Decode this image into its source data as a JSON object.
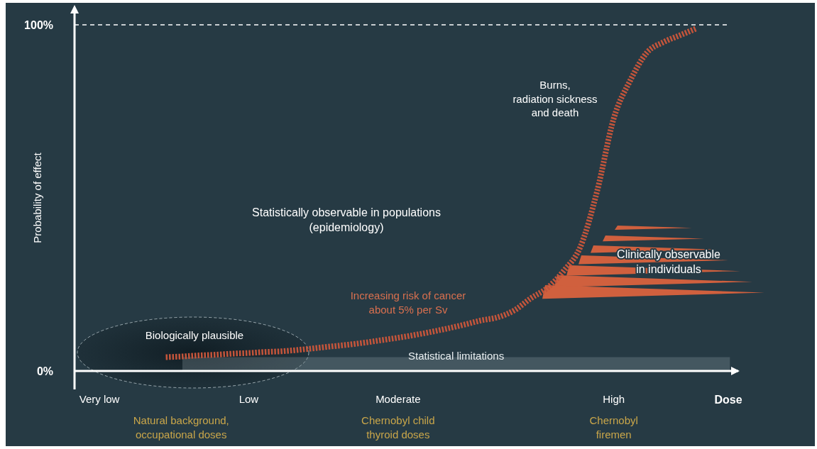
{
  "chart_data": {
    "type": "line",
    "xlabel": "Dose",
    "ylabel": "Probability of effect",
    "categories": [
      null,
      "Very low",
      null,
      null,
      null,
      null,
      null,
      null,
      null,
      null,
      "Low",
      null,
      null,
      null,
      null,
      null,
      null,
      null,
      null,
      "Moderate",
      null,
      null,
      null,
      null,
      null,
      null,
      null,
      null,
      null,
      null,
      null,
      null,
      "High",
      null,
      null,
      null,
      null,
      null,
      null,
      null
    ],
    "ylim": [
      0,
      100
    ],
    "yticks": [
      {
        "value": 0,
        "label": "0%"
      },
      {
        "value": 100,
        "label": "100%"
      }
    ],
    "grid": false,
    "line_style": "dashed",
    "series": [
      {
        "color": "#c4553b",
        "values": [
          null,
          null,
          null,
          null,
          null,
          4,
          4.2,
          4.5,
          4.7,
          5,
          5.2,
          5.5,
          5.7,
          6.1,
          6.6,
          7.1,
          7.6,
          8.2,
          8.9,
          9.6,
          10.4,
          11.3,
          12.3,
          13.4,
          14.6,
          15.5,
          17.5,
          21,
          24,
          29,
          36,
          52,
          73,
          84,
          92,
          95,
          97,
          99,
          null,
          null
        ]
      }
    ],
    "ref_lines": [
      {
        "axis": "y",
        "value": 100,
        "color": "#ffffff",
        "line_style": "dashed"
      }
    ],
    "bands": [
      {
        "axis": "y",
        "from": 0,
        "to": 4,
        "label": "Statistical limitations",
        "color": "#8a9aa2"
      }
    ],
    "annotations": [
      "Biologically plausible",
      "Increasing risk of cancer\nabout 5% per Sv",
      "Burns,\nradiation sickness\nand death",
      "Clinically observable\nin individuals",
      "Statistically observable in populations\n(epidemiology)",
      "Natural background,\noccupational doses",
      "Chernobyl child\nthyroid doses",
      "Chernobyl\nfiremen"
    ]
  }
}
